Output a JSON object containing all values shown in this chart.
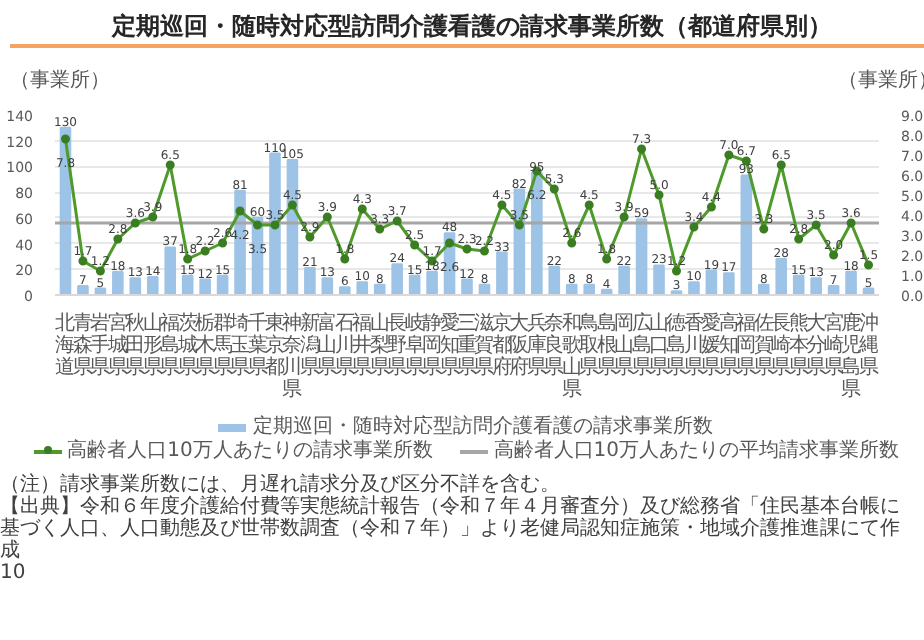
{
  "chart_data": {
    "type": "bar",
    "title": "定期巡回・随時対応型訪問介護看護の請求事業所数（都道府県別）",
    "ylabel": "（事業所）",
    "y2label": "（事業所）",
    "categories": [
      "北海道",
      "青森県",
      "岩手県",
      "宮城県",
      "秋田県",
      "山形県",
      "福島県",
      "茨城県",
      "栃木県",
      "群馬県",
      "埼玉県",
      "千葉県",
      "東京都",
      "神奈川県",
      "新潟県",
      "富山県",
      "石川県",
      "福井県",
      "山梨県",
      "長野県",
      "岐阜県",
      "静岡県",
      "愛知県",
      "三重県",
      "滋賀県",
      "京都府",
      "大阪府",
      "兵庫県",
      "奈良県",
      "和歌山県",
      "鳥取県",
      "島根県",
      "岡山県",
      "広島県",
      "山口県",
      "徳島県",
      "香川県",
      "愛媛県",
      "高知県",
      "福岡県",
      "佐賀県",
      "長崎県",
      "熊本県",
      "大分県",
      "宮崎県",
      "鹿児島県",
      "沖縄県"
    ],
    "series": [
      {
        "name": "定期巡回・随時対応型訪問介護看護の請求事業所数",
        "color": "#9dc3e6",
        "values": [
          130,
          7,
          5,
          18,
          13,
          14,
          37,
          15,
          12,
          15,
          81,
          60,
          110,
          105,
          21,
          13,
          6,
          10,
          8,
          24,
          15,
          18,
          48,
          12,
          8,
          33,
          82,
          95,
          22,
          8,
          8,
          4,
          22,
          59,
          23,
          3,
          10,
          19,
          17,
          93,
          8,
          28,
          15,
          13,
          7,
          18,
          5
        ],
        "value_labels": [
          "130",
          "7",
          "5",
          "18",
          "13",
          "14",
          "37",
          "15",
          "12",
          "15",
          "81",
          "60",
          "110",
          "105",
          "21",
          "13",
          "6",
          "10",
          "8",
          "24",
          "15",
          "18",
          "48",
          "12",
          "8",
          "33",
          "82",
          "95",
          "22",
          "8",
          "8",
          "4",
          "22",
          "59",
          "23",
          "3",
          "10",
          "19",
          "17",
          "93",
          "8",
          "28",
          "15",
          "13",
          "7",
          "18",
          "5"
        ]
      },
      {
        "name": "高齢者人口10万人あたりの請求事業所数",
        "type": "line",
        "axis": "y2",
        "color": "#4e9a2a",
        "values": [
          7.8,
          1.7,
          1.2,
          2.8,
          3.6,
          3.9,
          6.5,
          1.8,
          2.2,
          2.6,
          4.2,
          3.5,
          3.5,
          4.5,
          2.9,
          3.9,
          1.8,
          4.3,
          3.3,
          3.7,
          2.5,
          1.7,
          2.6,
          2.3,
          2.2,
          4.5,
          3.5,
          6.2,
          5.3,
          2.6,
          4.5,
          1.8,
          3.9,
          7.3,
          5.0,
          1.2,
          3.4,
          4.4,
          7.0,
          6.7,
          3.3,
          6.5,
          2.8,
          3.5,
          2.0,
          3.6,
          1.5
        ],
        "value_labels": [
          "7.8",
          "1.7",
          "1.2",
          "2.8",
          "3.6",
          "3.9",
          "6.5",
          "1.8",
          "2.2",
          "2.6",
          "4.2",
          "3.5",
          "3.5",
          "4.5",
          "2.9",
          "3.9",
          "1.8",
          "4.3",
          "3.3",
          "3.7",
          "2.5",
          "1.7",
          "2.6",
          "2.3",
          "2.2",
          "4.5",
          "3.5",
          "6.2",
          "5.3",
          "2.6",
          "4.5",
          "1.8",
          "3.9",
          "7.3",
          "5.0",
          "1.2",
          "3.4",
          "4.4",
          "7.0",
          "6.7",
          "3.3",
          "6.5",
          "2.8",
          "3.5",
          "2.0",
          "3.6",
          "1.5"
        ]
      }
    ],
    "ylim": [
      0,
      140
    ],
    "yticks": [
      0,
      20,
      40,
      60,
      80,
      100,
      120,
      140
    ],
    "y2lim": [
      0,
      9
    ],
    "y2ticks": [
      {
        "value": 0,
        "label": "0.0"
      },
      {
        "value": 1,
        "label": "1.0"
      },
      {
        "value": 2,
        "label": "2.0"
      },
      {
        "value": 3,
        "label": "3.0"
      },
      {
        "value": 4,
        "label": "4.0"
      },
      {
        "value": 5,
        "label": "5.0"
      },
      {
        "value": 6,
        "label": "6.0"
      },
      {
        "value": 7,
        "label": "7.0"
      },
      {
        "value": 8,
        "label": "8.0"
      },
      {
        "value": 9,
        "label": "9.0"
      }
    ],
    "ref_lines": [
      {
        "axis": "y2",
        "value": 3.6,
        "label": "高齢者人口10万人あたりの平均請求事業所数",
        "color": "#a6a6a6"
      }
    ],
    "grid": "y",
    "legend": "bottom",
    "marker": "circle",
    "annotations": [
      "（注）請求事業所数には、月遅れ請求分及び区分不詳を含む。",
      "【出典】令和６年度介護給付費等実態統計報告（令和７年４月審査分）及び総務省「住民基本台帳に基づく人口、人口動態及び世帯数調査（令和７年）」より老健局認知症施策・地域介護推進課にて作成",
      "10"
    ]
  }
}
